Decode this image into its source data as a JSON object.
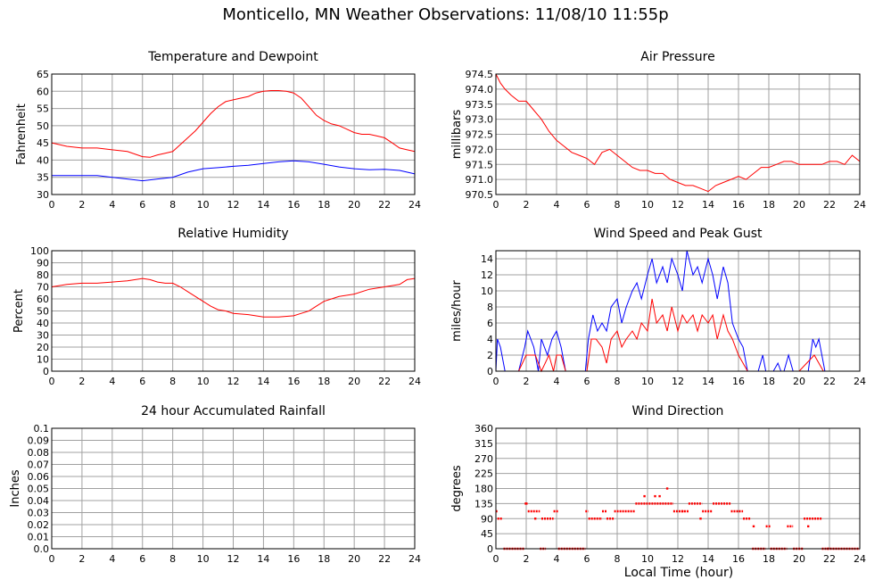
{
  "title": "Monticello, MN Weather Observations: 11/08/10 11:55p",
  "shared_xlabel": "Local Time (hour)",
  "colors": {
    "red": "#ff0000",
    "blue": "#0000ff",
    "grid": "#a0a0a0"
  },
  "chart_data": [
    {
      "id": "temp",
      "type": "line",
      "title": "Temperature and Dewpoint",
      "ylabel": "Fahrenheit",
      "xlim": [
        0,
        24
      ],
      "ylim": [
        30,
        65
      ],
      "xticks": [
        0,
        2,
        4,
        6,
        8,
        10,
        12,
        14,
        16,
        18,
        20,
        22,
        24
      ],
      "yticks": [
        30,
        35,
        40,
        45,
        50,
        55,
        60,
        65
      ],
      "grid": true,
      "series": [
        {
          "color": "#ff0000",
          "x": [
            0,
            1,
            2,
            3,
            4,
            5,
            6,
            6.5,
            7,
            7.5,
            8,
            8.5,
            9,
            9.5,
            10,
            10.5,
            11,
            11.5,
            12,
            12.5,
            13,
            13.5,
            14,
            14.5,
            15,
            15.5,
            16,
            16.5,
            17,
            17.5,
            18,
            18.5,
            19,
            19.5,
            20,
            20.5,
            21,
            21.5,
            22,
            22.5,
            23,
            23.5,
            24
          ],
          "y": [
            45,
            44,
            43.5,
            43.5,
            43,
            42.5,
            41,
            40.8,
            41.5,
            42,
            42.5,
            44.5,
            46.5,
            48.5,
            51,
            53.5,
            55.5,
            57,
            57.5,
            58,
            58.5,
            59.5,
            60,
            60.2,
            60.2,
            60,
            59.5,
            58,
            55.5,
            53,
            51.5,
            50.5,
            50,
            49,
            48,
            47.5,
            47.5,
            47,
            46.5,
            45,
            43.5,
            43,
            42.5
          ]
        },
        {
          "color": "#0000ff",
          "x": [
            0,
            1,
            2,
            3,
            4,
            5,
            6,
            7,
            8,
            9,
            10,
            11,
            12,
            13,
            14,
            15,
            16,
            17,
            18,
            19,
            20,
            21,
            22,
            23,
            24
          ],
          "y": [
            35.5,
            35.5,
            35.5,
            35.5,
            35,
            34.5,
            34,
            34.5,
            35,
            36.5,
            37.5,
            37.8,
            38.2,
            38.5,
            39,
            39.5,
            39.8,
            39.5,
            38.8,
            38,
            37.5,
            37.2,
            37.3,
            37,
            36
          ]
        }
      ]
    },
    {
      "id": "pressure",
      "type": "line",
      "title": "Air Pressure",
      "ylabel": "millibars",
      "xlim": [
        0,
        24
      ],
      "ylim": [
        970.5,
        974.5
      ],
      "xticks": [
        0,
        2,
        4,
        6,
        8,
        10,
        12,
        14,
        16,
        18,
        20,
        22,
        24
      ],
      "yticks": [
        970.5,
        971.0,
        971.5,
        972.0,
        972.5,
        973.0,
        973.5,
        974.0,
        974.5
      ],
      "ytick_labels": [
        "970.5",
        "971.0",
        "971.5",
        "972.0",
        "972.5",
        "973.0",
        "973.5",
        "974.0",
        "974.5"
      ],
      "grid": true,
      "series": [
        {
          "color": "#ff0000",
          "x": [
            0,
            0.3,
            0.6,
            1,
            1.5,
            2,
            2.5,
            3,
            3.5,
            4,
            4.5,
            5,
            5.5,
            6,
            6.5,
            7,
            7.5,
            8,
            8.5,
            9,
            9.5,
            10,
            10.5,
            11,
            11.5,
            12,
            12.5,
            13,
            13.5,
            14,
            14.5,
            15,
            15.5,
            16,
            16.5,
            17,
            17.5,
            18,
            18.5,
            19,
            19.5,
            20,
            20.5,
            21,
            21.5,
            22,
            22.5,
            23,
            23.5,
            24
          ],
          "y": [
            974.5,
            974.2,
            974.0,
            973.8,
            973.6,
            973.6,
            973.3,
            973.0,
            972.6,
            972.3,
            972.1,
            971.9,
            971.8,
            971.7,
            971.5,
            971.9,
            972.0,
            971.8,
            971.6,
            971.4,
            971.3,
            971.3,
            971.2,
            971.2,
            971.0,
            970.9,
            970.8,
            970.8,
            970.7,
            970.6,
            970.8,
            970.9,
            971.0,
            971.1,
            971.0,
            971.2,
            971.4,
            971.4,
            971.5,
            971.6,
            971.6,
            971.5,
            971.5,
            971.5,
            971.5,
            971.6,
            971.6,
            971.5,
            971.8,
            971.6
          ]
        }
      ]
    },
    {
      "id": "humidity",
      "type": "line",
      "title": "Relative Humidity",
      "ylabel": "Percent",
      "xlim": [
        0,
        24
      ],
      "ylim": [
        0,
        100
      ],
      "xticks": [
        0,
        2,
        4,
        6,
        8,
        10,
        12,
        14,
        16,
        18,
        20,
        22,
        24
      ],
      "yticks": [
        0,
        10,
        20,
        30,
        40,
        50,
        60,
        70,
        80,
        90,
        100
      ],
      "grid": true,
      "series": [
        {
          "color": "#ff0000",
          "x": [
            0,
            1,
            2,
            3,
            4,
            5,
            6,
            6.5,
            7,
            7.5,
            8,
            8.5,
            9,
            9.5,
            10,
            10.5,
            11,
            11.5,
            12,
            13,
            14,
            15,
            16,
            16.5,
            17,
            17.5,
            18,
            18.5,
            19,
            20,
            21,
            22,
            23,
            23.5,
            24
          ],
          "y": [
            70,
            72,
            73,
            73,
            74,
            75,
            77,
            76,
            74,
            73,
            73,
            70,
            66,
            62,
            58,
            54,
            51,
            50,
            48,
            47,
            45,
            45,
            46,
            48,
            50,
            54,
            58,
            60,
            62,
            64,
            68,
            70,
            72,
            76,
            77
          ]
        }
      ]
    },
    {
      "id": "wind",
      "type": "line",
      "title": "Wind Speed and Peak Gust",
      "ylabel": "miles/hour",
      "xlim": [
        0,
        24
      ],
      "ylim": [
        0,
        15
      ],
      "xticks": [
        0,
        2,
        4,
        6,
        8,
        10,
        12,
        14,
        16,
        18,
        20,
        22,
        24
      ],
      "yticks": [
        0,
        2,
        4,
        6,
        8,
        10,
        12,
        14
      ],
      "grid": true,
      "series": [
        {
          "color": "#0000ff",
          "x": [
            0,
            0.1,
            0.3,
            0.6,
            0.8,
            1,
            1.5,
            1.9,
            2.1,
            2.5,
            2.8,
            3,
            3.4,
            3.7,
            4,
            4.3,
            4.6,
            5,
            5.5,
            5.9,
            6.1,
            6.4,
            6.7,
            7,
            7.3,
            7.6,
            8,
            8.3,
            8.6,
            9,
            9.3,
            9.6,
            10,
            10.3,
            10.6,
            11,
            11.3,
            11.6,
            12,
            12.3,
            12.6,
            13,
            13.3,
            13.6,
            14,
            14.3,
            14.6,
            15,
            15.3,
            15.6,
            16,
            16.3,
            16.6,
            17,
            17.3,
            17.6,
            17.8,
            18,
            18.3,
            18.6,
            18.8,
            19,
            19.3,
            19.6,
            20,
            20.3,
            20.6,
            20.9,
            21.1,
            21.3,
            21.5,
            21.7,
            22,
            22.5,
            23,
            24
          ],
          "y": [
            0,
            4,
            3,
            0,
            0,
            0,
            0,
            3,
            5,
            3,
            0,
            4,
            2,
            4,
            5,
            3,
            0,
            0,
            0,
            0,
            4,
            7,
            5,
            6,
            5,
            8,
            9,
            6,
            8,
            10,
            11,
            9,
            12,
            14,
            11,
            13,
            11,
            14,
            12,
            10,
            15,
            12,
            13,
            11,
            14,
            12,
            9,
            13,
            11,
            6,
            4,
            3,
            0,
            0,
            0,
            2,
            0,
            0,
            0,
            1,
            0,
            0,
            2,
            0,
            0,
            0,
            0,
            4,
            3,
            4,
            2,
            0,
            0,
            0,
            0,
            0
          ]
        },
        {
          "color": "#ff0000",
          "x": [
            0,
            0.5,
            1,
            1.5,
            2,
            2.3,
            2.6,
            3,
            3.5,
            3.8,
            4,
            4.3,
            4.6,
            5,
            5.5,
            6,
            6.3,
            6.6,
            7,
            7.3,
            7.6,
            8,
            8.3,
            8.6,
            9,
            9.3,
            9.6,
            10,
            10.3,
            10.6,
            11,
            11.3,
            11.6,
            12,
            12.3,
            12.6,
            13,
            13.3,
            13.6,
            14,
            14.3,
            14.6,
            15,
            15.3,
            15.6,
            16,
            16.3,
            16.6,
            17,
            18,
            19,
            20,
            21,
            21.3,
            21.6,
            22,
            23,
            24
          ],
          "y": [
            0,
            0,
            0,
            0,
            2,
            2,
            2,
            0,
            2,
            0,
            2,
            2,
            0,
            0,
            0,
            0,
            4,
            4,
            3,
            1,
            4,
            5,
            3,
            4,
            5,
            4,
            6,
            5,
            9,
            6,
            7,
            5,
            8,
            5,
            7,
            6,
            7,
            5,
            7,
            6,
            7,
            4,
            7,
            5,
            4,
            2,
            1,
            0,
            0,
            0,
            0,
            0,
            2,
            1,
            0,
            0,
            0,
            0
          ]
        }
      ]
    },
    {
      "id": "rain",
      "type": "line",
      "title": "24 hour Accumulated Rainfall",
      "ylabel": "Inches",
      "xlim": [
        0,
        24
      ],
      "ylim": [
        0,
        0.1
      ],
      "xticks": [
        0,
        2,
        4,
        6,
        8,
        10,
        12,
        14,
        16,
        18,
        20,
        22,
        24
      ],
      "yticks": [
        0,
        0.01,
        0.02,
        0.03,
        0.04,
        0.05,
        0.06,
        0.07,
        0.08,
        0.09,
        0.1
      ],
      "ytick_labels": [
        "0.0",
        "0.01",
        "0.02",
        "0.03",
        "0.04",
        "0.05",
        "0.06",
        "0.07",
        "0.08",
        "0.09",
        "0.1"
      ],
      "grid": true,
      "series": [
        {
          "color": "#ff0000",
          "x": [
            0,
            24
          ],
          "y": [
            0,
            0
          ]
        }
      ]
    },
    {
      "id": "direction",
      "type": "scatter",
      "title": "Wind Direction",
      "ylabel": "degrees",
      "xlim": [
        0,
        24
      ],
      "ylim": [
        0,
        360
      ],
      "xticks": [
        0,
        2,
        4,
        6,
        8,
        10,
        12,
        14,
        16,
        18,
        20,
        22,
        24
      ],
      "yticks": [
        0,
        45,
        90,
        135,
        180,
        225,
        270,
        315,
        360
      ],
      "grid": true,
      "segments": [
        {
          "x0": 0,
          "x1": 0.1,
          "y": 112
        },
        {
          "x0": 0.1,
          "x1": 0.4,
          "y": 90
        },
        {
          "x0": 0.5,
          "x1": 1.9,
          "y": 0
        },
        {
          "x0": 1.9,
          "x1": 2.1,
          "y": 135
        },
        {
          "x0": 2.1,
          "x1": 2.9,
          "y": 112
        },
        {
          "x0": 2.9,
          "x1": 3.3,
          "y": 0
        },
        {
          "x0": 3.0,
          "x1": 3.8,
          "y": 90
        },
        {
          "x0": 3.8,
          "x1": 4.1,
          "y": 112
        },
        {
          "x0": 4.1,
          "x1": 5.9,
          "y": 0
        },
        {
          "x0": 5.9,
          "x1": 6.1,
          "y": 112
        },
        {
          "x0": 6.1,
          "x1": 7.0,
          "y": 90
        },
        {
          "x0": 7.0,
          "x1": 7.3,
          "y": 112
        },
        {
          "x0": 7.3,
          "x1": 7.8,
          "y": 90
        },
        {
          "x0": 7.8,
          "x1": 9.2,
          "y": 112
        },
        {
          "x0": 9.2,
          "x1": 11.7,
          "y": 135
        },
        {
          "x0": 11.7,
          "x1": 12.7,
          "y": 112
        },
        {
          "x0": 12.7,
          "x1": 13.6,
          "y": 135
        },
        {
          "x0": 13.6,
          "x1": 14.3,
          "y": 112
        },
        {
          "x0": 14.3,
          "x1": 15.5,
          "y": 135
        },
        {
          "x0": 15.5,
          "x1": 16.3,
          "y": 112
        },
        {
          "x0": 16.3,
          "x1": 16.8,
          "y": 90
        },
        {
          "x0": 16.9,
          "x1": 17.8,
          "y": 0
        },
        {
          "x0": 17.8,
          "x1": 18.1,
          "y": 67
        },
        {
          "x0": 18.1,
          "x1": 19.2,
          "y": 0
        },
        {
          "x0": 19.2,
          "x1": 19.6,
          "y": 67
        },
        {
          "x0": 19.6,
          "x1": 20.3,
          "y": 0
        },
        {
          "x0": 20.3,
          "x1": 21.5,
          "y": 90
        },
        {
          "x0": 21.5,
          "x1": 24,
          "y": 0
        }
      ],
      "points": [
        {
          "x": 2.0,
          "y": 135
        },
        {
          "x": 2.6,
          "y": 90
        },
        {
          "x": 9.8,
          "y": 157
        },
        {
          "x": 10.5,
          "y": 157
        },
        {
          "x": 10.8,
          "y": 157
        },
        {
          "x": 11.3,
          "y": 180
        },
        {
          "x": 12.3,
          "y": 112
        },
        {
          "x": 13.5,
          "y": 90
        },
        {
          "x": 17.0,
          "y": 67
        },
        {
          "x": 20.6,
          "y": 67
        },
        {
          "x": 21.9,
          "y": 0
        }
      ]
    }
  ]
}
